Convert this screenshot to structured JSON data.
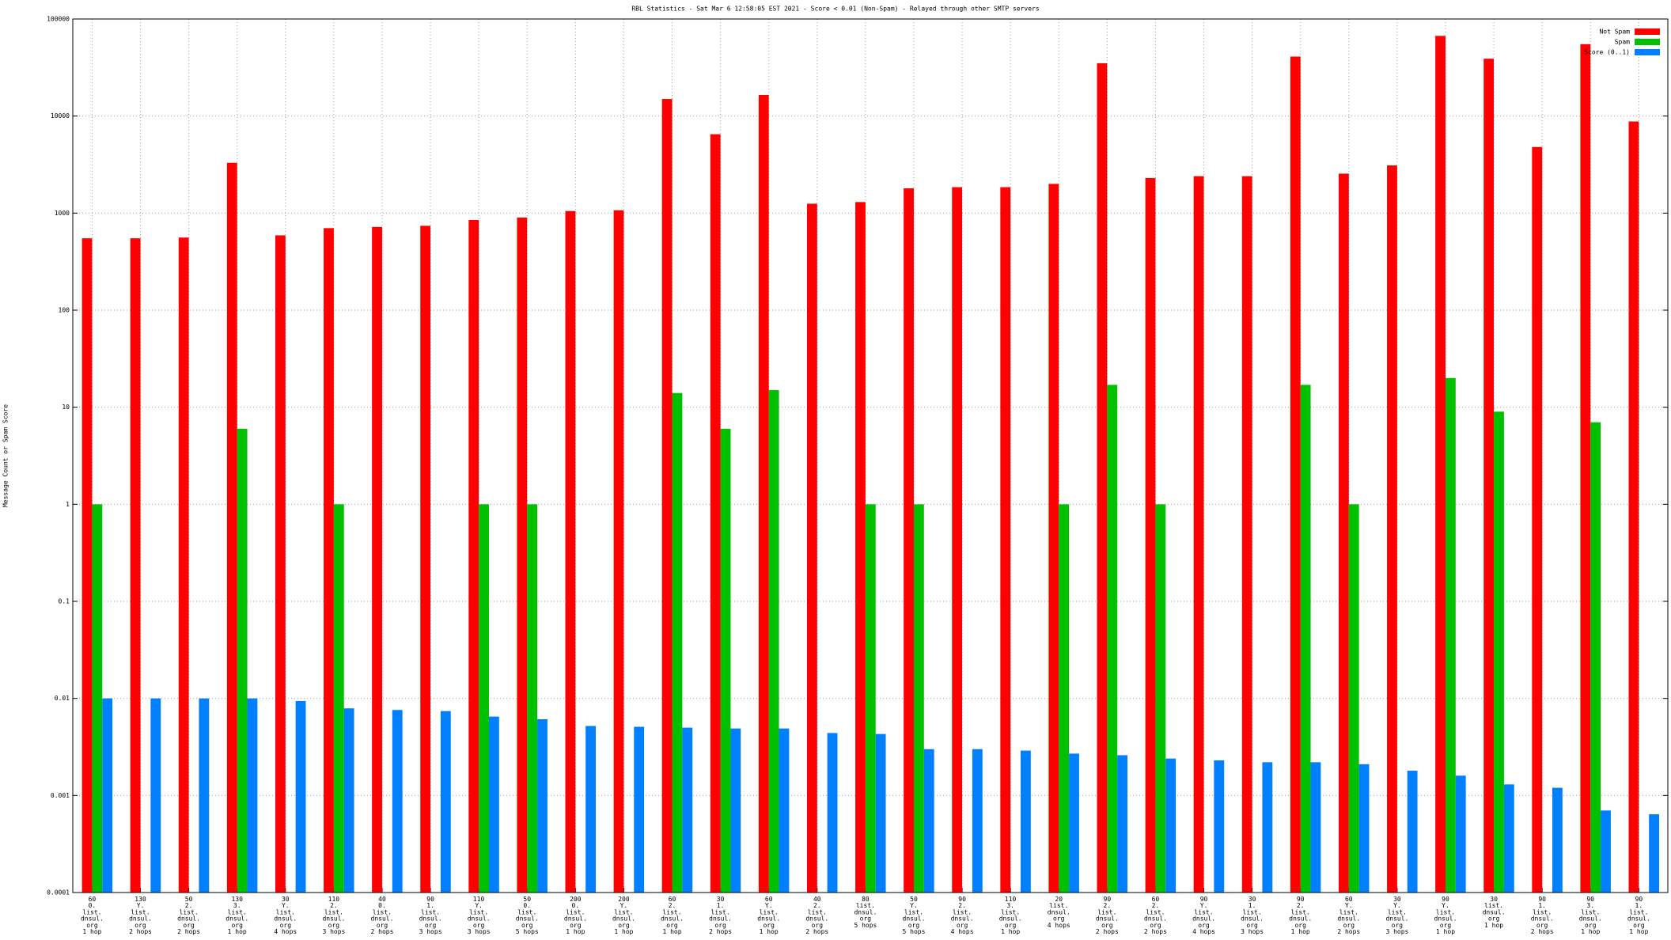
{
  "chart_data": {
    "type": "bar",
    "title": "RBL Statistics - Sat Mar  6 12:58:05 EST 2021 - Score < 0.01 (Non-Spam) - Relayed through other SMTP servers",
    "y_label": "Message Count or Spam Score",
    "categories": [
      [
        "60",
        "0.",
        "list.",
        "dnsul.",
        "org",
        "1 hop"
      ],
      [
        "130",
        "Y.",
        "list.",
        "dnsul.",
        "org",
        "2 hops"
      ],
      [
        "50",
        "2.",
        "list.",
        "dnsul.",
        "org",
        "2 hops"
      ],
      [
        "130",
        "3.",
        "list.",
        "dnsul.",
        "org",
        "1 hop"
      ],
      [
        "30",
        "Y.",
        "list.",
        "dnsul.",
        "org",
        "4 hops"
      ],
      [
        "110",
        "2.",
        "list.",
        "dnsul.",
        "org",
        "3 hops"
      ],
      [
        "40",
        "0.",
        "list.",
        "dnsul.",
        "org",
        "2 hops"
      ],
      [
        "90",
        "1.",
        "list.",
        "dnsul.",
        "org",
        "3 hops"
      ],
      [
        "110",
        "Y.",
        "list.",
        "dnsul.",
        "org",
        "3 hops"
      ],
      [
        "50",
        "0.",
        "list.",
        "dnsul.",
        "org",
        "5 hops"
      ],
      [
        "200",
        "0.",
        "list.",
        "dnsul.",
        "org",
        "1 hop"
      ],
      [
        "200",
        "Y.",
        "list.",
        "dnsul.",
        "org",
        "1 hop"
      ],
      [
        "60",
        "2.",
        "list.",
        "dnsul.",
        "org",
        "1 hop"
      ],
      [
        "30",
        "1.",
        "list.",
        "dnsul.",
        "org",
        "2 hops"
      ],
      [
        "60",
        "Y.",
        "list.",
        "dnsul.",
        "org",
        "1 hop"
      ],
      [
        "40",
        "2.",
        "list.",
        "dnsul.",
        "org",
        "2 hops"
      ],
      [
        "80",
        "list.",
        "dnsul.",
        "org",
        "5 hops"
      ],
      [
        "50",
        "Y.",
        "list.",
        "dnsul.",
        "org",
        "5 hops"
      ],
      [
        "90",
        "2.",
        "list.",
        "dnsul.",
        "org",
        "4 hops"
      ],
      [
        "110",
        "3.",
        "list.",
        "dnsul.",
        "org",
        "1 hop"
      ],
      [
        "20",
        "list.",
        "dnsul.",
        "org",
        "4 hops"
      ],
      [
        "90",
        "2.",
        "list.",
        "dnsul.",
        "org",
        "2 hops"
      ],
      [
        "60",
        "2.",
        "list.",
        "dnsul.",
        "org",
        "2 hops"
      ],
      [
        "90",
        "Y.",
        "list.",
        "dnsul.",
        "org",
        "4 hops"
      ],
      [
        "30",
        "1.",
        "list.",
        "dnsul.",
        "org",
        "3 hops"
      ],
      [
        "90",
        "2.",
        "list.",
        "dnsul.",
        "org",
        "1 hop"
      ],
      [
        "60",
        "Y.",
        "list.",
        "dnsul.",
        "org",
        "2 hops"
      ],
      [
        "30",
        "Y.",
        "list.",
        "dnsul.",
        "org",
        "3 hops"
      ],
      [
        "90",
        "Y.",
        "list.",
        "dnsul.",
        "org",
        "1 hop"
      ],
      [
        "30",
        "list.",
        "dnsul.",
        "org",
        "1 hop"
      ],
      [
        "90",
        "1.",
        "list.",
        "dnsul.",
        "org",
        "2 hops"
      ],
      [
        "90",
        "3.",
        "list.",
        "dnsul.",
        "org",
        "1 hop"
      ],
      [
        "90",
        "1.",
        "list.",
        "dnsul.",
        "org",
        "1 hop"
      ]
    ],
    "series": [
      {
        "name": "Not Spam",
        "color": "#ff0000",
        "values": [
          550,
          550,
          560,
          3300,
          590,
          700,
          720,
          740,
          850,
          900,
          1050,
          1070,
          15000,
          6500,
          16500,
          1250,
          1300,
          1800,
          1850,
          1850,
          2000,
          35000,
          2300,
          2400,
          2400,
          41000,
          2550,
          3100,
          67000,
          39000,
          4800,
          55000,
          8800
        ]
      },
      {
        "name": "Spam",
        "color": "#00c000",
        "values": [
          1,
          null,
          null,
          6,
          null,
          1,
          null,
          null,
          1,
          1,
          null,
          null,
          14,
          6,
          15,
          null,
          1,
          1,
          null,
          null,
          1,
          17,
          1,
          null,
          null,
          17,
          1,
          null,
          20,
          9,
          null,
          7,
          null
        ]
      },
      {
        "name": "Score (0..1)",
        "color": "#0080ff",
        "values": [
          0.01,
          0.01,
          0.01,
          0.01,
          0.0094,
          0.0079,
          0.0076,
          0.0074,
          0.0065,
          0.0061,
          0.0052,
          0.0051,
          0.005,
          0.0049,
          0.0049,
          0.0044,
          0.0043,
          0.003,
          0.003,
          0.0029,
          0.0027,
          0.0026,
          0.0024,
          0.0023,
          0.0022,
          0.0022,
          0.0021,
          0.0018,
          0.0016,
          0.0013,
          0.0012,
          0.0007,
          0.00064
        ]
      }
    ],
    "ylim": [
      0.0001,
      100000
    ],
    "yticks": [
      0.0001,
      0.001,
      0.01,
      0.1,
      1,
      10,
      100,
      1000,
      10000,
      100000
    ],
    "log_scale": true,
    "grid": true,
    "legend": "top-right"
  }
}
